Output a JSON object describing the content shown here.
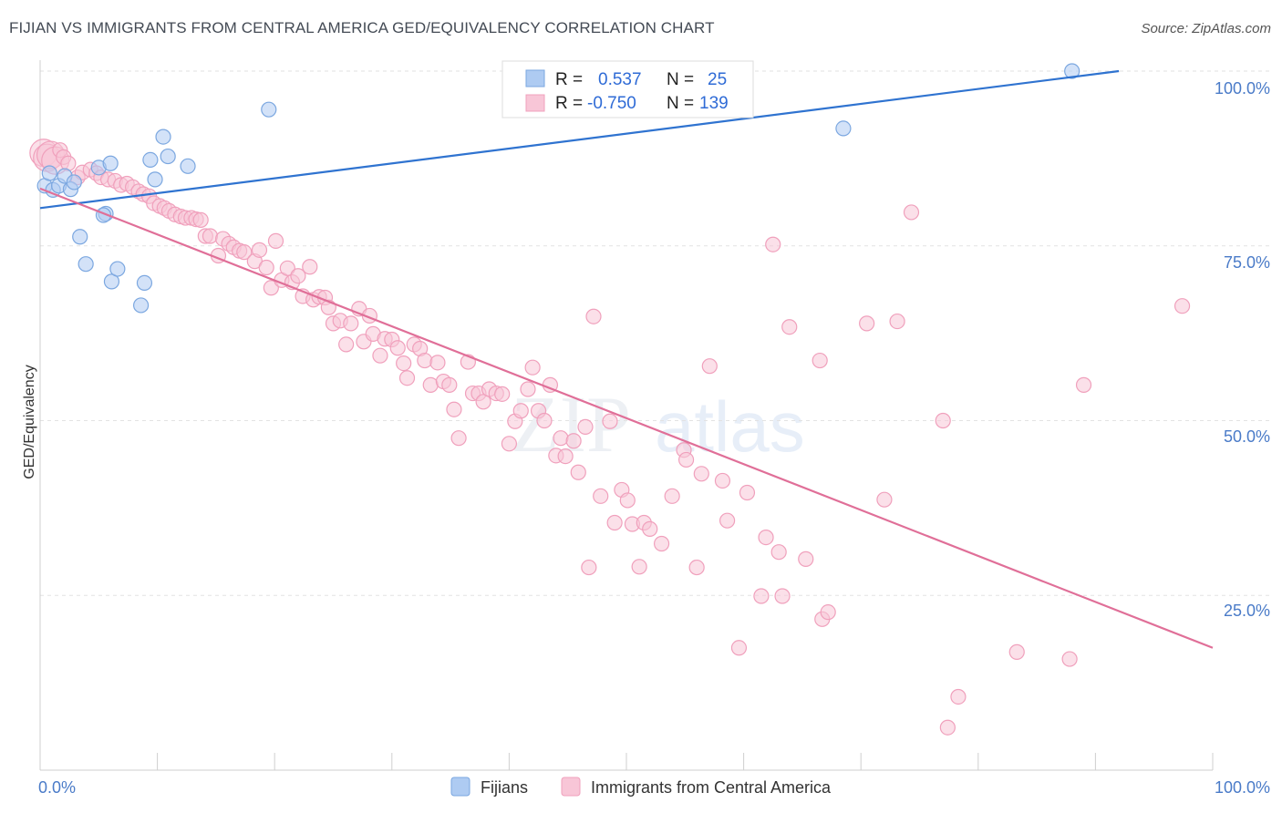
{
  "header": {
    "title": "FIJIAN VS IMMIGRANTS FROM CENTRAL AMERICA GED/EQUIVALENCY CORRELATION CHART",
    "source": "Source: ZipAtlas.com"
  },
  "watermark": "ZIPatlas",
  "chart_data": {
    "type": "scatter",
    "title": "FIJIAN VS IMMIGRANTS FROM CENTRAL AMERICA GED/EQUIVALENCY CORRELATION CHART",
    "xlabel": "",
    "ylabel": "GED/Equivalency",
    "xlim": [
      0,
      100
    ],
    "ylim": [
      0,
      100
    ],
    "x_tick_labels": [
      "0.0%",
      "100.0%"
    ],
    "y_tick_labels": [
      "25.0%",
      "50.0%",
      "75.0%",
      "100.0%"
    ],
    "y_ticks": [
      25,
      50,
      75,
      100
    ],
    "grid": true,
    "legend": {
      "position": "top-center",
      "entries": [
        {
          "r_label": "R =",
          "r_value": "0.537",
          "n_label": "N =",
          "n_value": "25"
        },
        {
          "r_label": "R =",
          "r_value": "-0.750",
          "n_label": "N =",
          "n_value": "139"
        }
      ]
    },
    "series": [
      {
        "name": "Fijians",
        "color": "#7ba7e0",
        "fill": "#aecbf2",
        "trend_color": "#2f73d0",
        "trend": {
          "x": [
            0,
            92
          ],
          "y": [
            80.4,
            100
          ]
        },
        "points": [
          [
            0.4,
            83.6
          ],
          [
            0.8,
            85.4
          ],
          [
            1.1,
            83.0
          ],
          [
            1.6,
            83.6
          ],
          [
            2.1,
            85.0
          ],
          [
            2.6,
            83.1
          ],
          [
            2.9,
            84.1
          ],
          [
            3.4,
            76.3
          ],
          [
            3.9,
            72.4
          ],
          [
            5.0,
            86.2
          ],
          [
            5.6,
            79.6
          ],
          [
            5.4,
            79.4
          ],
          [
            6.0,
            86.8
          ],
          [
            6.1,
            69.9
          ],
          [
            6.6,
            71.7
          ],
          [
            8.6,
            66.5
          ],
          [
            8.9,
            69.7
          ],
          [
            9.4,
            87.3
          ],
          [
            9.8,
            84.5
          ],
          [
            10.5,
            90.6
          ],
          [
            10.9,
            87.8
          ],
          [
            12.6,
            86.4
          ],
          [
            19.5,
            94.5
          ],
          [
            68.5,
            91.8
          ],
          [
            88.0,
            100.0
          ]
        ]
      },
      {
        "name": "Immigrants from Central America",
        "color": "#f0a0bc",
        "fill": "#f8c6d7",
        "trend_color": "#e06f98",
        "trend": {
          "x": [
            0,
            100
          ],
          "y": [
            83.2,
            17.5
          ]
        },
        "points": [
          [
            0.3,
            88.3
          ],
          [
            0.6,
            87.6
          ],
          [
            0.9,
            88.0
          ],
          [
            1.3,
            87.2
          ],
          [
            1.7,
            88.7
          ],
          [
            2.0,
            87.7
          ],
          [
            2.4,
            86.8
          ],
          [
            3.2,
            84.8
          ],
          [
            3.6,
            85.5
          ],
          [
            4.3,
            85.9
          ],
          [
            4.8,
            85.4
          ],
          [
            5.2,
            84.8
          ],
          [
            5.8,
            84.5
          ],
          [
            6.4,
            84.3
          ],
          [
            6.9,
            83.7
          ],
          [
            7.4,
            83.9
          ],
          [
            7.9,
            83.4
          ],
          [
            8.4,
            82.8
          ],
          [
            8.8,
            82.4
          ],
          [
            9.3,
            82.1
          ],
          [
            9.7,
            81.1
          ],
          [
            10.2,
            80.7
          ],
          [
            10.6,
            80.4
          ],
          [
            11.0,
            80.0
          ],
          [
            11.5,
            79.5
          ],
          [
            12.0,
            79.2
          ],
          [
            12.4,
            79.0
          ],
          [
            12.9,
            79.0
          ],
          [
            13.3,
            78.8
          ],
          [
            13.7,
            78.7
          ],
          [
            14.1,
            76.4
          ],
          [
            14.5,
            76.4
          ],
          [
            15.2,
            73.6
          ],
          [
            15.6,
            76.0
          ],
          [
            16.1,
            75.3
          ],
          [
            16.5,
            74.8
          ],
          [
            17.0,
            74.3
          ],
          [
            17.4,
            74.1
          ],
          [
            18.3,
            72.8
          ],
          [
            18.7,
            74.4
          ],
          [
            19.3,
            71.9
          ],
          [
            19.7,
            69.0
          ],
          [
            20.1,
            75.7
          ],
          [
            20.6,
            70.1
          ],
          [
            21.1,
            71.8
          ],
          [
            21.5,
            69.8
          ],
          [
            22.0,
            70.7
          ],
          [
            22.4,
            67.8
          ],
          [
            23.0,
            72.0
          ],
          [
            23.3,
            67.3
          ],
          [
            23.8,
            67.7
          ],
          [
            24.3,
            67.6
          ],
          [
            24.6,
            66.2
          ],
          [
            25.0,
            63.9
          ],
          [
            25.6,
            64.3
          ],
          [
            26.1,
            60.9
          ],
          [
            26.5,
            63.9
          ],
          [
            27.2,
            66.0
          ],
          [
            27.6,
            61.3
          ],
          [
            28.1,
            65.0
          ],
          [
            28.4,
            62.4
          ],
          [
            29.0,
            59.3
          ],
          [
            29.4,
            61.7
          ],
          [
            30.0,
            61.6
          ],
          [
            30.5,
            60.4
          ],
          [
            31.0,
            58.2
          ],
          [
            31.3,
            56.1
          ],
          [
            31.9,
            60.9
          ],
          [
            32.4,
            60.3
          ],
          [
            32.8,
            58.6
          ],
          [
            33.3,
            55.1
          ],
          [
            33.9,
            58.3
          ],
          [
            34.4,
            55.6
          ],
          [
            34.9,
            55.1
          ],
          [
            35.3,
            51.6
          ],
          [
            35.7,
            47.5
          ],
          [
            36.5,
            58.4
          ],
          [
            36.9,
            53.9
          ],
          [
            37.4,
            53.9
          ],
          [
            37.8,
            52.7
          ],
          [
            38.3,
            54.5
          ],
          [
            38.9,
            53.9
          ],
          [
            39.4,
            53.8
          ],
          [
            40.0,
            46.7
          ],
          [
            40.5,
            49.9
          ],
          [
            41.0,
            51.4
          ],
          [
            41.6,
            54.5
          ],
          [
            42.0,
            57.6
          ],
          [
            42.5,
            51.4
          ],
          [
            43.0,
            50.0
          ],
          [
            43.5,
            55.1
          ],
          [
            44.0,
            45.0
          ],
          [
            44.4,
            47.5
          ],
          [
            44.8,
            44.9
          ],
          [
            45.5,
            47.1
          ],
          [
            45.9,
            42.6
          ],
          [
            46.5,
            49.1
          ],
          [
            46.8,
            29.0
          ],
          [
            47.2,
            64.9
          ],
          [
            47.8,
            39.2
          ],
          [
            48.6,
            49.9
          ],
          [
            49.0,
            35.4
          ],
          [
            49.6,
            40.1
          ],
          [
            50.1,
            38.6
          ],
          [
            50.5,
            35.2
          ],
          [
            51.1,
            29.1
          ],
          [
            51.5,
            35.4
          ],
          [
            52.0,
            34.5
          ],
          [
            53.0,
            32.4
          ],
          [
            53.9,
            39.2
          ],
          [
            54.9,
            45.8
          ],
          [
            55.1,
            44.4
          ],
          [
            56.0,
            29.0
          ],
          [
            56.4,
            42.4
          ],
          [
            57.1,
            57.8
          ],
          [
            58.2,
            41.4
          ],
          [
            58.6,
            35.7
          ],
          [
            59.6,
            17.5
          ],
          [
            60.3,
            39.7
          ],
          [
            61.5,
            24.9
          ],
          [
            61.9,
            33.3
          ],
          [
            62.5,
            75.2
          ],
          [
            63.0,
            31.2
          ],
          [
            63.3,
            24.9
          ],
          [
            63.9,
            63.4
          ],
          [
            65.3,
            30.2
          ],
          [
            66.5,
            58.6
          ],
          [
            66.7,
            21.6
          ],
          [
            67.2,
            22.6
          ],
          [
            70.5,
            63.9
          ],
          [
            72.0,
            38.7
          ],
          [
            73.1,
            64.2
          ],
          [
            74.3,
            79.8
          ],
          [
            77.0,
            50.0
          ],
          [
            77.4,
            6.1
          ],
          [
            78.3,
            10.5
          ],
          [
            83.3,
            16.9
          ],
          [
            87.8,
            15.9
          ],
          [
            89.0,
            55.1
          ],
          [
            97.4,
            66.4
          ]
        ]
      }
    ]
  }
}
